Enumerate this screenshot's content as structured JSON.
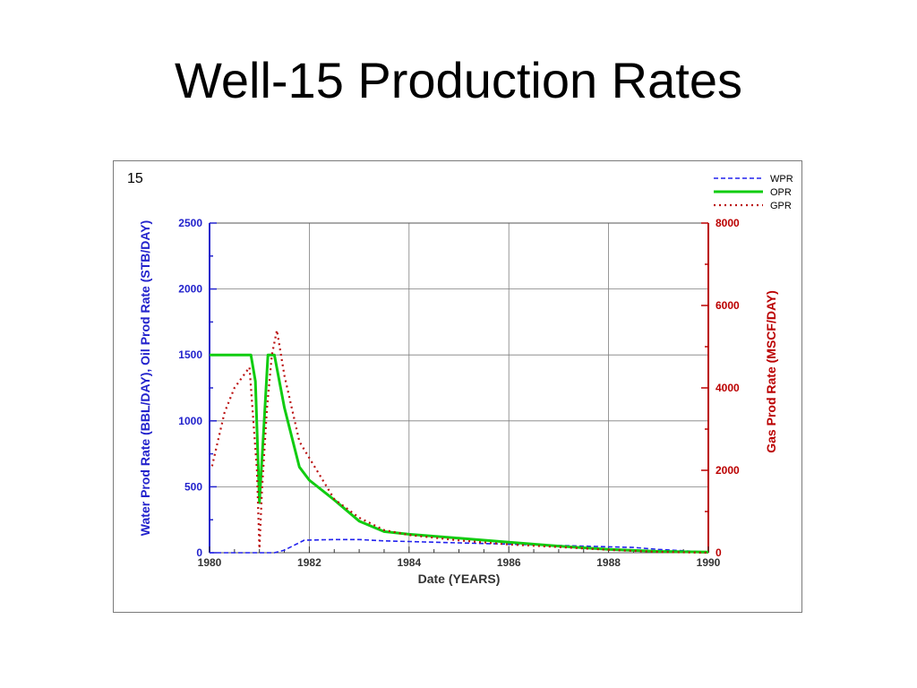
{
  "slide": {
    "title": "Well-15 Production Rates"
  },
  "chart_data": {
    "type": "line",
    "panel_label": "15",
    "xlabel": "Date (YEARS)",
    "ylabel_left": "Water Prod Rate (BBL/DAY), Oil Prod Rate (STB/DAY)",
    "ylabel_right": "Gas Prod Rate (MSCF/DAY)",
    "xlim": [
      1980,
      1990
    ],
    "ylim_left": [
      0,
      2500
    ],
    "ylim_right": [
      0,
      8000
    ],
    "x_ticks": [
      1980,
      1982,
      1984,
      1986,
      1988,
      1990
    ],
    "y_ticks_left": [
      0,
      500,
      1000,
      1500,
      2000,
      2500
    ],
    "y_ticks_right": [
      0,
      2000,
      4000,
      6000,
      8000
    ],
    "grid": true,
    "legend_position": "top-right",
    "colors": {
      "left_axis": "#2222cc",
      "right_axis": "#bb0000",
      "grid": "#7f7f7f"
    },
    "series": [
      {
        "name": "WPR",
        "axis": "left",
        "color": "#2222ee",
        "style": "dashed",
        "x": [
          1980.0,
          1981.3,
          1981.5,
          1981.9,
          1982.5,
          1983.0,
          1983.5,
          1984.0,
          1985.0,
          1986.0,
          1987.0,
          1988.0,
          1988.5,
          1989.0,
          1990.0
        ],
        "y": [
          0,
          0,
          20,
          95,
          100,
          100,
          90,
          85,
          75,
          65,
          55,
          45,
          40,
          25,
          5
        ]
      },
      {
        "name": "OPR",
        "axis": "left",
        "color": "#11cc11",
        "style": "solid",
        "x": [
          1980.0,
          1980.83,
          1980.92,
          1981.0,
          1981.08,
          1981.17,
          1981.3,
          1981.5,
          1981.8,
          1982.0,
          1982.5,
          1983.0,
          1983.5,
          1984.0,
          1985.0,
          1986.0,
          1987.0,
          1988.0,
          1989.0,
          1990.0
        ],
        "y": [
          1500,
          1500,
          1300,
          380,
          900,
          1500,
          1500,
          1100,
          650,
          550,
          400,
          240,
          160,
          140,
          110,
          80,
          50,
          25,
          10,
          5
        ]
      },
      {
        "name": "GPR",
        "axis": "right",
        "color": "#bb1111",
        "style": "dotted",
        "x": [
          1980.05,
          1980.3,
          1980.5,
          1980.8,
          1980.95,
          1981.0,
          1981.05,
          1981.15,
          1981.25,
          1981.35,
          1981.5,
          1981.8,
          1982.0,
          1982.5,
          1983.0,
          1983.5,
          1984.0,
          1985.0,
          1986.0,
          1987.0,
          1988.0,
          1989.0,
          1990.0
        ],
        "y": [
          2100,
          3400,
          4000,
          4500,
          2000,
          100,
          1500,
          3500,
          4800,
          5400,
          4300,
          2700,
          2300,
          1300,
          850,
          550,
          430,
          300,
          200,
          140,
          70,
          20,
          0
        ]
      }
    ]
  }
}
